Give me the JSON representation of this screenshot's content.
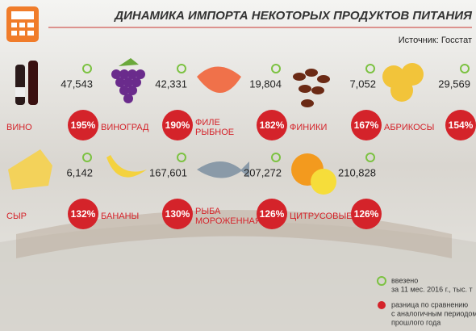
{
  "header": {
    "title": "ДИНАМИКА ИМПОРТА НЕКОТОРЫХ ПРОДУКТОВ ПИТАНИЯ",
    "source": "Источник: Госстат"
  },
  "items": [
    {
      "name": [
        "ВИНО"
      ],
      "value": "47,543",
      "change": "195%"
    },
    {
      "name": [
        "ВИНОГРАД"
      ],
      "value": "42,331",
      "change": "190%"
    },
    {
      "name": [
        "ФИЛЕ",
        "РЫБНОЕ"
      ],
      "value": "19,804",
      "change": "182%"
    },
    {
      "name": [
        "ФИНИКИ"
      ],
      "value": "7,052",
      "change": "167%"
    },
    {
      "name": [
        "АБРИКОСЫ"
      ],
      "value": "29,569",
      "change": "154%"
    },
    {
      "name": [
        "СЫР"
      ],
      "value": "6,142",
      "change": "132%"
    },
    {
      "name": [
        "БАНАНЫ"
      ],
      "value": "167,601",
      "change": "130%"
    },
    {
      "name": [
        "РЫБА",
        "МОРОЖЕННАЯ"
      ],
      "value": "207,272",
      "change": "126%"
    },
    {
      "name": [
        "ЦИТРУСОВЫЕ"
      ],
      "value": "210,828",
      "change": "126%"
    }
  ],
  "legend": {
    "imported": [
      "ввезено",
      "за 11 мес. 2016 г., тыс. т"
    ],
    "difference": [
      "разница по сравнению",
      "с аналогичным периодом",
      "прошлого года"
    ]
  }
}
